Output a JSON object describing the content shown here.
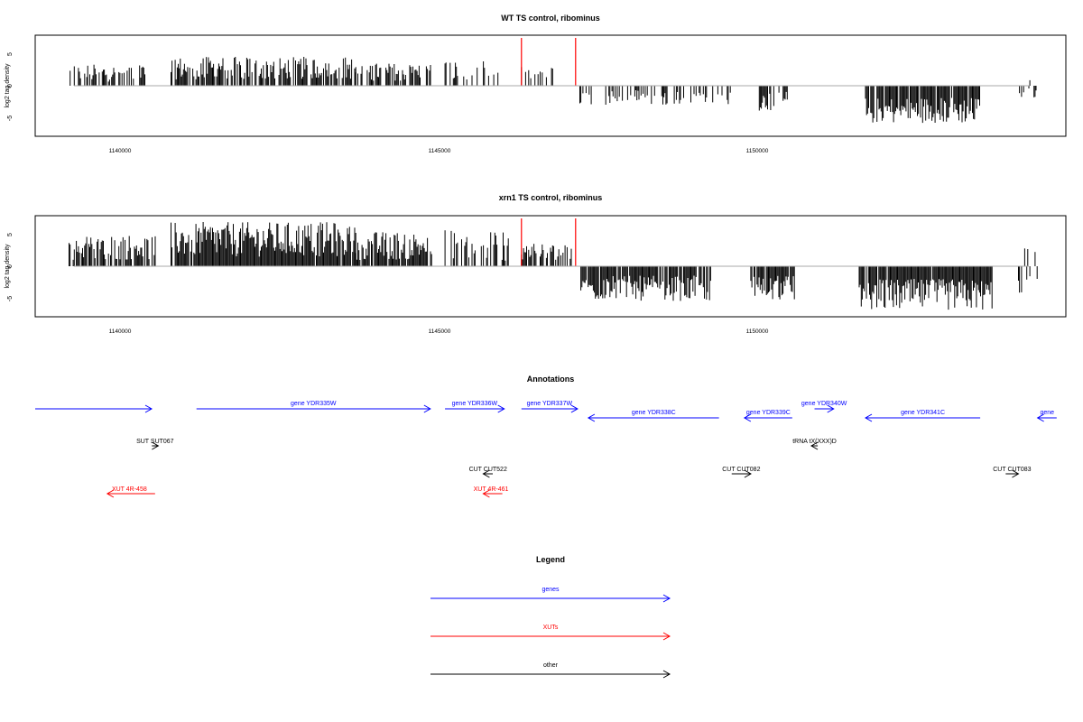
{
  "chart_data": [
    {
      "type": "bar",
      "title": "WT TS control, ribominus",
      "ylabel": "log2 tag density",
      "xlim": [
        1138500,
        1154700
      ],
      "ylim": [
        -7.5,
        7.5
      ],
      "yticks": [
        -5,
        0,
        5
      ],
      "xticks": [
        1140000,
        1145000,
        1150000
      ],
      "grid": false,
      "marker_lines": [
        {
          "x": 1146300,
          "color": "#ff0000"
        },
        {
          "x": 1147150,
          "color": "#ff0000"
        }
      ],
      "segments": [
        {
          "start": 1139200,
          "end": 1140400,
          "min": 0.6,
          "max": 3.4,
          "density": 0.55
        },
        {
          "start": 1140800,
          "end": 1143700,
          "min": 1.0,
          "max": 4.6,
          "density": 0.75
        },
        {
          "start": 1143700,
          "end": 1144900,
          "min": 0.8,
          "max": 3.6,
          "density": 0.55
        },
        {
          "start": 1145100,
          "end": 1146000,
          "min": 0.6,
          "max": 4.0,
          "density": 0.4
        },
        {
          "start": 1146300,
          "end": 1146900,
          "min": 0.5,
          "max": 3.0,
          "density": 0.35
        },
        {
          "start": 1147200,
          "end": 1149600,
          "min": -3.0,
          "max": -0.5,
          "density": 0.3
        },
        {
          "start": 1150000,
          "end": 1150500,
          "min": -4.0,
          "max": -0.8,
          "density": 0.6
        },
        {
          "start": 1151700,
          "end": 1153500,
          "min": -6.0,
          "max": -1.8,
          "density": 0.9
        },
        {
          "start": 1154100,
          "end": 1154400,
          "min": -2.0,
          "max": 1.0,
          "density": 0.3
        }
      ]
    },
    {
      "type": "bar",
      "title": "xrn1 TS control, ribominus",
      "ylabel": "log2 tag density",
      "xlim": [
        1138500,
        1154700
      ],
      "ylim": [
        -7.5,
        7.5
      ],
      "yticks": [
        -5,
        0,
        5
      ],
      "xticks": [
        1140000,
        1145000,
        1150000
      ],
      "grid": false,
      "marker_lines": [
        {
          "x": 1146300,
          "color": "#ff0000"
        },
        {
          "x": 1147150,
          "color": "#ff0000"
        }
      ],
      "segments": [
        {
          "start": 1139200,
          "end": 1140600,
          "min": 1.0,
          "max": 5.0,
          "density": 0.7
        },
        {
          "start": 1140800,
          "end": 1143700,
          "min": 1.5,
          "max": 7.0,
          "density": 0.95
        },
        {
          "start": 1143700,
          "end": 1144900,
          "min": 1.0,
          "max": 5.5,
          "density": 0.9
        },
        {
          "start": 1145100,
          "end": 1146100,
          "min": 0.8,
          "max": 6.0,
          "density": 0.55
        },
        {
          "start": 1146300,
          "end": 1147100,
          "min": 0.8,
          "max": 3.6,
          "density": 0.6
        },
        {
          "start": 1147200,
          "end": 1149300,
          "min": -5.5,
          "max": -1.5,
          "density": 0.85
        },
        {
          "start": 1149900,
          "end": 1150600,
          "min": -5.5,
          "max": -1.5,
          "density": 0.85
        },
        {
          "start": 1151600,
          "end": 1153700,
          "min": -7.0,
          "max": -2.0,
          "density": 0.95
        },
        {
          "start": 1154100,
          "end": 1154400,
          "min": -5.0,
          "max": 3.0,
          "density": 0.5
        }
      ]
    }
  ],
  "tick_labels": [
    "1140000",
    "1145000",
    "1150000"
  ],
  "y_tick_labels": [
    "-5",
    "0",
    "5"
  ],
  "annotations": {
    "title": "Annotations",
    "genes": [
      {
        "label": "gene YDR335W",
        "start": 1141200,
        "end": 1144870,
        "strand": "+",
        "row": 0
      },
      {
        "label": "gene YDR336W",
        "start": 1145100,
        "end": 1146030,
        "strand": "+",
        "row": 0
      },
      {
        "label": "gene YDR337W",
        "start": 1146300,
        "end": 1147180,
        "strand": "+",
        "row": 0
      },
      {
        "label": "gene YDR338C",
        "start": 1147350,
        "end": 1149400,
        "strand": "-",
        "row": 1
      },
      {
        "label": "gene YDR339C",
        "start": 1149800,
        "end": 1150550,
        "strand": "-",
        "row": 1
      },
      {
        "label": "gene YDR340W",
        "start": 1150900,
        "end": 1151200,
        "strand": "+",
        "row": 0
      },
      {
        "label": "gene YDR341C",
        "start": 1151700,
        "end": 1153500,
        "strand": "-",
        "row": 1
      },
      {
        "label": "gene",
        "start": 1154400,
        "end": 1154700,
        "strand": "-",
        "row": 1
      }
    ],
    "other": [
      {
        "label": "SUT SUT067",
        "start": 1140500,
        "end": 1140600,
        "strand": "+",
        "row": 2
      },
      {
        "label": "tRNA tX(XXX)D",
        "start": 1150850,
        "end": 1150950,
        "strand": "-",
        "row": 2
      },
      {
        "label": "CUT CUT522",
        "start": 1145700,
        "end": 1145850,
        "strand": "-",
        "row": 3
      },
      {
        "label": "CUT CUT082",
        "start": 1149600,
        "end": 1149900,
        "strand": "+",
        "row": 3
      },
      {
        "label": "CUT CUT083",
        "start": 1153900,
        "end": 1154100,
        "strand": "+",
        "row": 3
      }
    ],
    "xuts": [
      {
        "label": "XUT 4R-458",
        "start": 1139800,
        "end": 1140550,
        "strand": "-",
        "row": 4
      },
      {
        "label": "XUT 4R-461",
        "start": 1145700,
        "end": 1146000,
        "strand": "-",
        "row": 4
      }
    ],
    "gene_color": "#0000ff",
    "xut_color": "#ff0000",
    "other_color": "#000000"
  },
  "legend": {
    "title": "Legend",
    "items": [
      {
        "label": "genes",
        "color": "#0000ff"
      },
      {
        "label": "XUTs",
        "color": "#ff0000"
      },
      {
        "label": "other",
        "color": "#000000"
      }
    ]
  }
}
